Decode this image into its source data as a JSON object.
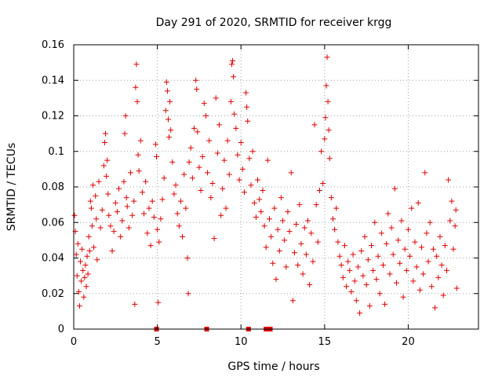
{
  "chart_data": {
    "type": "scatter",
    "title": "Day 291 of 2020, SRMTID for receiver krgg",
    "xlabel": "GPS time / hours",
    "ylabel": "SRMTID / TECUs",
    "xlim": [
      0,
      24.2
    ],
    "ylim": [
      0,
      0.16
    ],
    "x_ticks": [
      0,
      5,
      10,
      15,
      20
    ],
    "x_tick_labels": [
      "0",
      "5",
      "10",
      "15",
      "20"
    ],
    "y_ticks": [
      0,
      0.02,
      0.04,
      0.06,
      0.08,
      0.1,
      0.12,
      0.14,
      0.16
    ],
    "y_tick_labels": [
      "0",
      "0.02",
      "0.04",
      "0.06",
      "0.08",
      "0.1",
      "0.12",
      "0.14",
      "0.16"
    ],
    "grid": true,
    "marker": "plus",
    "color": "#e00000",
    "series": [
      {
        "name": "SRMTID",
        "points": [
          [
            0.05,
            0.064
          ],
          [
            0.1,
            0.055
          ],
          [
            0.15,
            0.042
          ],
          [
            0.2,
            0.03
          ],
          [
            0.25,
            0.048
          ],
          [
            0.3,
            0.021
          ],
          [
            0.35,
            0.013
          ],
          [
            0.4,
            0.038
          ],
          [
            0.45,
            0.027
          ],
          [
            0.5,
            0.045
          ],
          [
            0.55,
            0.033
          ],
          [
            0.6,
            0.018
          ],
          [
            0.65,
            0.029
          ],
          [
            0.7,
            0.036
          ],
          [
            0.75,
            0.024
          ],
          [
            0.8,
            0.041
          ],
          [
            0.85,
            0.031
          ],
          [
            0.9,
            0.052
          ],
          [
            0.95,
            0.044
          ],
          [
            1.0,
            0.072
          ],
          [
            1.05,
            0.068
          ],
          [
            1.1,
            0.058
          ],
          [
            1.15,
            0.081
          ],
          [
            1.2,
            0.046
          ],
          [
            1.3,
            0.075
          ],
          [
            1.35,
            0.062
          ],
          [
            1.4,
            0.039
          ],
          [
            1.5,
            0.083
          ],
          [
            1.6,
            0.057
          ],
          [
            1.7,
            0.067
          ],
          [
            1.8,
            0.092
          ],
          [
            1.85,
            0.105
          ],
          [
            1.9,
            0.11
          ],
          [
            1.95,
            0.086
          ],
          [
            2.0,
            0.095
          ],
          [
            2.05,
            0.076
          ],
          [
            2.1,
            0.064
          ],
          [
            2.2,
            0.058
          ],
          [
            2.3,
            0.044
          ],
          [
            2.4,
            0.055
          ],
          [
            2.5,
            0.071
          ],
          [
            2.6,
            0.066
          ],
          [
            2.7,
            0.079
          ],
          [
            2.8,
            0.052
          ],
          [
            2.9,
            0.061
          ],
          [
            3.0,
            0.083
          ],
          [
            3.05,
            0.11
          ],
          [
            3.1,
            0.12
          ],
          [
            3.15,
            0.074
          ],
          [
            3.2,
            0.069
          ],
          [
            3.3,
            0.057
          ],
          [
            3.4,
            0.088
          ],
          [
            3.5,
            0.064
          ],
          [
            3.6,
            0.072
          ],
          [
            3.65,
            0.014
          ],
          [
            3.7,
            0.136
          ],
          [
            3.75,
            0.149
          ],
          [
            3.8,
            0.128
          ],
          [
            3.85,
            0.098
          ],
          [
            3.9,
            0.089
          ],
          [
            4.0,
            0.106
          ],
          [
            4.1,
            0.077
          ],
          [
            4.2,
            0.065
          ],
          [
            4.3,
            0.083
          ],
          [
            4.4,
            0.054
          ],
          [
            4.5,
            0.068
          ],
          [
            4.6,
            0.047
          ],
          [
            4.7,
            0.072
          ],
          [
            4.8,
            0.063
          ],
          [
            4.9,
            0.104
          ],
          [
            4.95,
            0.097
          ],
          [
            5.0,
            0.056
          ],
          [
            5.05,
            0.015
          ],
          [
            5.1,
            0.049
          ],
          [
            5.2,
            0.062
          ],
          [
            5.3,
            0.073
          ],
          [
            5.4,
            0.085
          ],
          [
            5.5,
            0.123
          ],
          [
            5.55,
            0.139
          ],
          [
            5.6,
            0.134
          ],
          [
            5.65,
            0.118
          ],
          [
            5.7,
            0.108
          ],
          [
            5.75,
            0.128
          ],
          [
            5.8,
            0.112
          ],
          [
            5.9,
            0.094
          ],
          [
            6.0,
            0.076
          ],
          [
            6.1,
            0.081
          ],
          [
            6.2,
            0.065
          ],
          [
            6.3,
            0.058
          ],
          [
            6.4,
            0.072
          ],
          [
            6.5,
            0.052
          ],
          [
            6.6,
            0.087
          ],
          [
            6.7,
            0.068
          ],
          [
            6.8,
            0.04
          ],
          [
            6.85,
            0.02
          ],
          [
            6.9,
            0.094
          ],
          [
            7.0,
            0.102
          ],
          [
            7.1,
            0.085
          ],
          [
            7.2,
            0.113
          ],
          [
            7.3,
            0.14
          ],
          [
            7.35,
            0.135
          ],
          [
            7.4,
            0.111
          ],
          [
            7.5,
            0.091
          ],
          [
            7.6,
            0.078
          ],
          [
            7.7,
            0.097
          ],
          [
            7.8,
            0.127
          ],
          [
            7.9,
            0.12
          ],
          [
            8.0,
            0.088
          ],
          [
            8.1,
            0.106
          ],
          [
            8.2,
            0.074
          ],
          [
            8.3,
            0.082
          ],
          [
            8.4,
            0.051
          ],
          [
            8.5,
            0.13
          ],
          [
            8.6,
            0.099
          ],
          [
            8.7,
            0.115
          ],
          [
            8.8,
            0.064
          ],
          [
            8.9,
            0.079
          ],
          [
            9.0,
            0.095
          ],
          [
            9.1,
            0.068
          ],
          [
            9.2,
            0.106
          ],
          [
            9.3,
            0.087
          ],
          [
            9.4,
            0.128
          ],
          [
            9.45,
            0.149
          ],
          [
            9.5,
            0.151
          ],
          [
            9.55,
            0.142
          ],
          [
            9.6,
            0.121
          ],
          [
            9.7,
            0.113
          ],
          [
            9.8,
            0.098
          ],
          [
            9.9,
            0.084
          ],
          [
            10.0,
            0.105
          ],
          [
            10.1,
            0.09
          ],
          [
            10.2,
            0.077
          ],
          [
            10.3,
            0.133
          ],
          [
            10.35,
            0.125
          ],
          [
            10.4,
            0.117
          ],
          [
            10.5,
            0.096
          ],
          [
            10.6,
            0.081
          ],
          [
            10.7,
            0.1
          ],
          [
            10.8,
            0.071
          ],
          [
            10.9,
            0.063
          ],
          [
            11.0,
            0.084
          ],
          [
            11.1,
            0.073
          ],
          [
            11.2,
            0.066
          ],
          [
            11.3,
            0.078
          ],
          [
            11.4,
            0.058
          ],
          [
            11.5,
            0.046
          ],
          [
            11.6,
            0.095
          ],
          [
            11.7,
            0.062
          ],
          [
            11.8,
            0.052
          ],
          [
            11.9,
            0.037
          ],
          [
            12.0,
            0.068
          ],
          [
            12.1,
            0.028
          ],
          [
            12.2,
            0.056
          ],
          [
            12.3,
            0.044
          ],
          [
            12.4,
            0.074
          ],
          [
            12.5,
            0.061
          ],
          [
            12.6,
            0.05
          ],
          [
            12.7,
            0.035
          ],
          [
            12.8,
            0.066
          ],
          [
            12.9,
            0.055
          ],
          [
            13.0,
            0.088
          ],
          [
            13.1,
            0.016
          ],
          [
            13.2,
            0.043
          ],
          [
            13.3,
            0.059
          ],
          [
            13.4,
            0.036
          ],
          [
            13.5,
            0.07
          ],
          [
            13.6,
            0.048
          ],
          [
            13.7,
            0.031
          ],
          [
            13.8,
            0.057
          ],
          [
            13.9,
            0.042
          ],
          [
            14.0,
            0.061
          ],
          [
            14.1,
            0.025
          ],
          [
            14.2,
            0.054
          ],
          [
            14.3,
            0.038
          ],
          [
            14.4,
            0.115
          ],
          [
            14.5,
            0.07
          ],
          [
            14.6,
            0.049
          ],
          [
            14.7,
            0.078
          ],
          [
            14.8,
            0.1
          ],
          [
            14.9,
            0.082
          ],
          [
            15.0,
            0.107
          ],
          [
            15.05,
            0.119
          ],
          [
            15.1,
            0.137
          ],
          [
            15.15,
            0.153
          ],
          [
            15.2,
            0.128
          ],
          [
            15.25,
            0.112
          ],
          [
            15.3,
            0.096
          ],
          [
            15.4,
            0.074
          ],
          [
            15.5,
            0.062
          ],
          [
            15.6,
            0.056
          ],
          [
            15.7,
            0.068
          ],
          [
            15.8,
            0.049
          ],
          [
            15.9,
            0.041
          ],
          [
            16.0,
            0.036
          ],
          [
            16.1,
            0.029
          ],
          [
            16.2,
            0.047
          ],
          [
            16.3,
            0.024
          ],
          [
            16.4,
            0.038
          ],
          [
            16.5,
            0.033
          ],
          [
            16.6,
            0.021
          ],
          [
            16.7,
            0.042
          ],
          [
            16.8,
            0.027
          ],
          [
            16.9,
            0.016
          ],
          [
            17.0,
            0.035
          ],
          [
            17.1,
            0.009
          ],
          [
            17.2,
            0.044
          ],
          [
            17.3,
            0.03
          ],
          [
            17.4,
            0.052
          ],
          [
            17.5,
            0.025
          ],
          [
            17.6,
            0.039
          ],
          [
            17.7,
            0.013
          ],
          [
            17.8,
            0.047
          ],
          [
            17.9,
            0.033
          ],
          [
            18.0,
            0.06
          ],
          [
            18.1,
            0.028
          ],
          [
            18.2,
            0.041
          ],
          [
            18.3,
            0.02
          ],
          [
            18.4,
            0.054
          ],
          [
            18.5,
            0.036
          ],
          [
            18.6,
            0.014
          ],
          [
            18.7,
            0.048
          ],
          [
            18.8,
            0.065
          ],
          [
            18.9,
            0.031
          ],
          [
            19.0,
            0.057
          ],
          [
            19.1,
            0.042
          ],
          [
            19.2,
            0.079
          ],
          [
            19.3,
            0.026
          ],
          [
            19.4,
            0.05
          ],
          [
            19.5,
            0.037
          ],
          [
            19.6,
            0.061
          ],
          [
            19.7,
            0.018
          ],
          [
            19.8,
            0.045
          ],
          [
            19.9,
            0.033
          ],
          [
            20.0,
            0.056
          ],
          [
            20.1,
            0.041
          ],
          [
            20.2,
            0.068
          ],
          [
            20.3,
            0.027
          ],
          [
            20.4,
            0.049
          ],
          [
            20.5,
            0.035
          ],
          [
            20.6,
            0.071
          ],
          [
            20.7,
            0.022
          ],
          [
            20.8,
            0.046
          ],
          [
            20.9,
            0.031
          ],
          [
            21.0,
            0.088
          ],
          [
            21.1,
            0.054
          ],
          [
            21.2,
            0.038
          ],
          [
            21.3,
            0.06
          ],
          [
            21.4,
            0.024
          ],
          [
            21.5,
            0.045
          ],
          [
            21.6,
            0.012
          ],
          [
            21.7,
            0.041
          ],
          [
            21.8,
            0.029
          ],
          [
            21.9,
            0.052
          ],
          [
            22.0,
            0.036
          ],
          [
            22.1,
            0.019
          ],
          [
            22.2,
            0.047
          ],
          [
            22.3,
            0.033
          ],
          [
            22.4,
            0.084
          ],
          [
            22.5,
            0.061
          ],
          [
            22.6,
            0.072
          ],
          [
            22.7,
            0.045
          ],
          [
            22.8,
            0.058
          ],
          [
            22.85,
            0.067
          ],
          [
            22.9,
            0.023
          ]
        ]
      }
    ],
    "x_axis_markers": [
      4.95,
      7.95,
      10.45,
      11.5,
      11.62,
      11.75
    ]
  }
}
